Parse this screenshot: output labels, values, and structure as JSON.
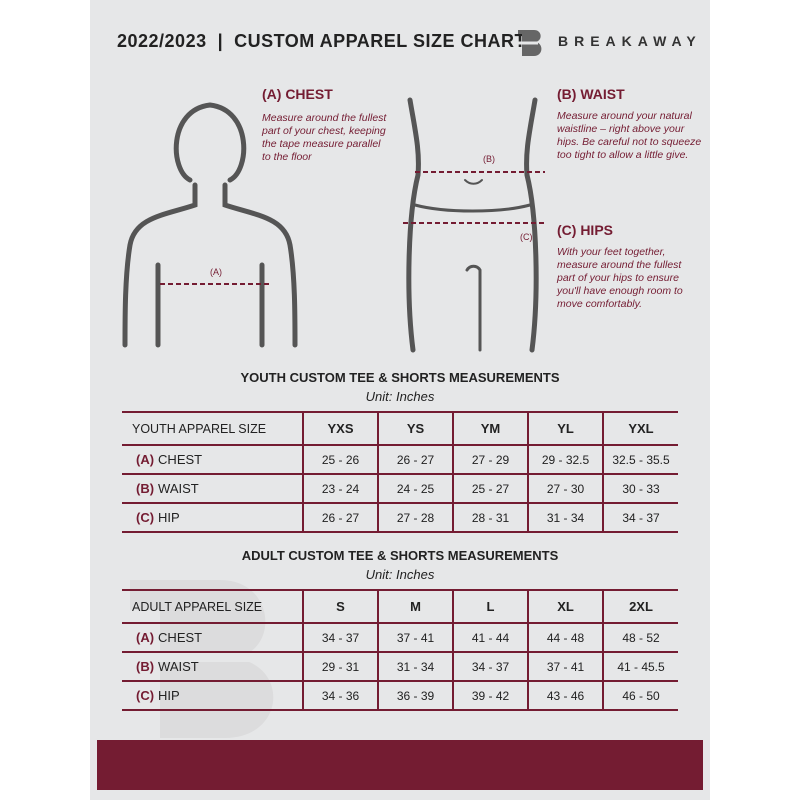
{
  "header": {
    "title": "2022/2023  |  CUSTOM APPAREL SIZE CHART",
    "brand": "BREAKAWAY"
  },
  "measures": {
    "chest": {
      "heading": "(A) CHEST",
      "text": "Measure around the fullest part of your chest, keeping the tape measure parallel to the floor",
      "marker": "(A)"
    },
    "waist": {
      "heading": "(B) WAIST",
      "text": "Measure around your natural waistline – right above your hips. Be careful not to squeeze too tight to allow a little give.",
      "marker": "(B)"
    },
    "hips": {
      "heading": "(C) HIPS",
      "text": "With your feet together, measure around the fullest part of your hips to ensure you'll have enough room to move comfortably.",
      "marker": "(C)"
    }
  },
  "youth": {
    "title": "YOUTH CUSTOM TEE & SHORTS MEASUREMENTS",
    "unit": "Unit: Inches",
    "size_label": "YOUTH APPAREL SIZE",
    "sizes": [
      "YXS",
      "YS",
      "YM",
      "YL",
      "YXL"
    ],
    "rows": [
      {
        "letter": "(A)",
        "name": "CHEST",
        "values": [
          "25 - 26",
          "26 - 27",
          "27 - 29",
          "29 - 32.5",
          "32.5 - 35.5"
        ]
      },
      {
        "letter": "(B)",
        "name": "WAIST",
        "values": [
          "23 - 24",
          "24 - 25",
          "25 - 27",
          "27 - 30",
          "30 - 33"
        ]
      },
      {
        "letter": "(C)",
        "name": "HIP",
        "values": [
          "26 - 27",
          "27 - 28",
          "28 - 31",
          "31 - 34",
          "34 - 37"
        ]
      }
    ]
  },
  "adult": {
    "title": "ADULT CUSTOM TEE & SHORTS MEASUREMENTS",
    "unit": "Unit: Inches",
    "size_label": "ADULT APPAREL SIZE",
    "sizes": [
      "S",
      "M",
      "L",
      "XL",
      "2XL"
    ],
    "rows": [
      {
        "letter": "(A)",
        "name": "CHEST",
        "values": [
          "34 - 37",
          "37 - 41",
          "41 - 44",
          "44 - 48",
          "48 - 52"
        ]
      },
      {
        "letter": "(B)",
        "name": "WAIST",
        "values": [
          "29 - 31",
          "31 - 34",
          "34 - 37",
          "37 - 41",
          "41 - 45.5"
        ]
      },
      {
        "letter": "(C)",
        "name": "HIP",
        "values": [
          "34 - 36",
          "36 - 39",
          "39 - 42",
          "43 - 46",
          "46 - 50"
        ]
      }
    ]
  },
  "colors": {
    "accent": "#741c32",
    "panel": "#e6e7e8"
  }
}
